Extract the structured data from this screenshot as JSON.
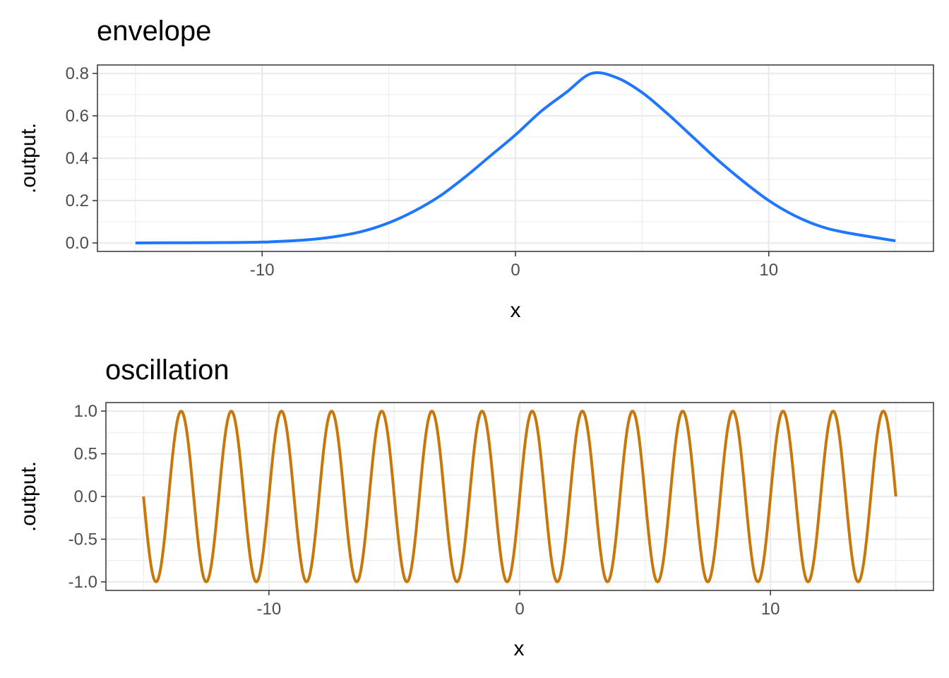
{
  "chart_data": [
    {
      "type": "line",
      "title": "envelope",
      "xlabel": "x",
      "ylabel": ".output.",
      "xlim": [
        -16.5,
        16.5
      ],
      "ylim": [
        -0.04,
        0.84
      ],
      "x_ticks": [
        -10,
        0,
        10
      ],
      "x_tick_labels": [
        "-10",
        "0",
        "10"
      ],
      "y_ticks": [
        0.0,
        0.2,
        0.4,
        0.6,
        0.8
      ],
      "y_tick_labels": [
        "0.0",
        "0.2",
        "0.4",
        "0.6",
        "0.8"
      ],
      "grid": true,
      "legend": "none",
      "color": "#1f77ff",
      "series": [
        {
          "x": [
            -15,
            -13,
            -11,
            -10,
            -9,
            -8,
            -7,
            -6,
            -5,
            -4,
            -3,
            -2,
            -1,
            0,
            1,
            2,
            3,
            4,
            5,
            6,
            7,
            8,
            9,
            10,
            11,
            12,
            13,
            15
          ],
          "values": [
            0.0,
            0.001,
            0.002,
            0.004,
            0.009,
            0.017,
            0.032,
            0.056,
            0.095,
            0.15,
            0.22,
            0.31,
            0.41,
            0.51,
            0.62,
            0.71,
            0.8,
            0.78,
            0.71,
            0.61,
            0.5,
            0.39,
            0.29,
            0.2,
            0.13,
            0.08,
            0.05,
            0.01
          ]
        }
      ]
    },
    {
      "type": "line",
      "title": "oscillation",
      "xlabel": "x",
      "ylabel": ".output.",
      "xlim": [
        -16.5,
        16.5
      ],
      "ylim": [
        -1.1,
        1.1
      ],
      "x_ticks": [
        -10,
        0,
        10
      ],
      "x_tick_labels": [
        "-10",
        "0",
        "10"
      ],
      "y_ticks": [
        -1.0,
        -0.5,
        0.0,
        0.5,
        1.0
      ],
      "y_tick_labels": [
        "-1.0",
        "-0.5",
        "0.0",
        "0.5",
        "1.0"
      ],
      "grid": true,
      "legend": "none",
      "color": "#c8780a",
      "series": [
        {
          "x": [
            -15,
            -14.5,
            -14,
            -13.5,
            -13,
            -12.5,
            -12,
            -11.5,
            -11,
            -10.5,
            -10,
            -9.5,
            -9,
            -8.5,
            -8,
            -7.5,
            -7,
            -6.5,
            -6,
            -5.5,
            -5,
            -4.5,
            -4,
            -3.5,
            -3,
            -2.5,
            -2,
            -1.5,
            -1,
            -0.5,
            0,
            0.5,
            1,
            1.5,
            2,
            2.5,
            3,
            3.5,
            4,
            4.5,
            5,
            5.5,
            6,
            6.5,
            7,
            7.5,
            8,
            8.5,
            9,
            9.5,
            10,
            10.5,
            11,
            11.5,
            12,
            12.5,
            13,
            13.5,
            14,
            14.5,
            15
          ],
          "values": [
            0,
            -1,
            0,
            1,
            0,
            -1,
            0,
            1,
            0,
            -1,
            0,
            1,
            0,
            -1,
            0,
            1,
            0,
            -1,
            0,
            1,
            0,
            -1,
            0,
            1,
            0,
            -1,
            0,
            1,
            0,
            -1,
            0,
            1,
            0,
            -1,
            0,
            1,
            0,
            -1,
            0,
            1,
            0,
            -1,
            0,
            1,
            0,
            -1,
            0,
            1,
            0,
            -1,
            0,
            1,
            0,
            -1,
            0,
            1,
            0,
            -1,
            0,
            1,
            0
          ]
        }
      ]
    }
  ]
}
